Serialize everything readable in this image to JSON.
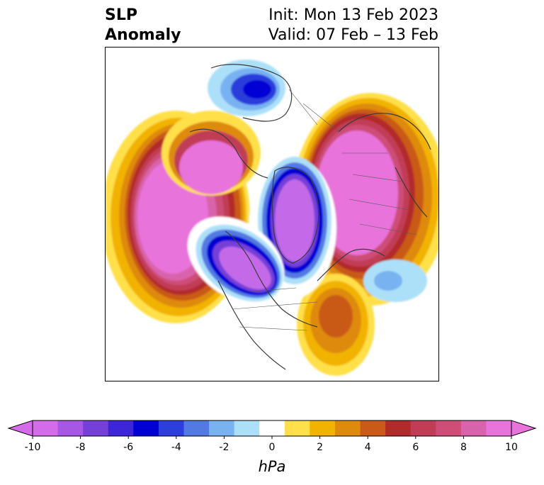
{
  "title": {
    "left_line1": "SLP",
    "left_line2": "Anomaly",
    "init": "Init: Mon 13 Feb 2023",
    "valid": "Valid: 07 Feb – 13 Feb"
  },
  "colorbar": {
    "unit": "hPa",
    "tick_labels": [
      "-10",
      "-8",
      "-6",
      "-4",
      "-2",
      "0",
      "2",
      "4",
      "6",
      "8",
      "10"
    ],
    "levels": [
      -10,
      -9,
      -8,
      -7,
      -6,
      -5,
      -4,
      -3,
      -2,
      -1,
      1,
      2,
      3,
      4,
      5,
      6,
      7,
      8,
      9,
      10
    ],
    "colors": [
      "#d46be8",
      "#a657e3",
      "#7440d8",
      "#3d25d8",
      "#0000d4",
      "#2c3edb",
      "#5379e3",
      "#78b2f1",
      "#ace0f9",
      "#ffffff",
      "#ffe04a",
      "#f2b300",
      "#de8a0c",
      "#c95a18",
      "#b22b2b",
      "#c13d56",
      "#ce4e78",
      "#d963ab",
      "#e873da"
    ],
    "extend": "both"
  }
}
